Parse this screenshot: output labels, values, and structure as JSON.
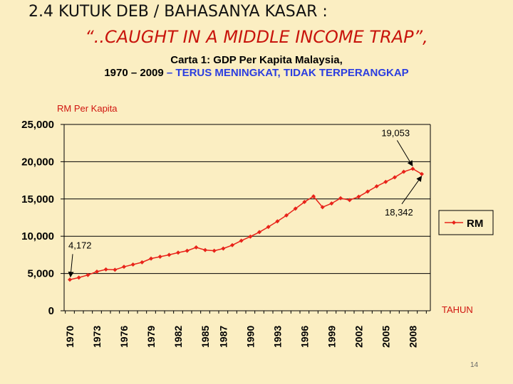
{
  "slide": {
    "title": "2.4   KUTUK DEB / BAHASANYA KASAR :",
    "subtitle": "“..CAUGHT IN A MIDDLE INCOME TRAP”,",
    "chart_title_line1": "Carta 1: GDP Per Kapita Malaysia,",
    "chart_title_line2_a": "1970 – 2009",
    "chart_title_line2_b": " – TERUS MENINGKAT, TIDAK TERPERANGKAP",
    "page_number": "14"
  },
  "colors": {
    "background": "#fbeec2",
    "series": "#e8231a",
    "subtitle": "#c8140c",
    "highlight_blue": "#2b3de0"
  },
  "chart_data": {
    "type": "line",
    "ylabel": "RM Per Kapita",
    "xlabel": "TAHUN",
    "ylim": [
      0,
      25000
    ],
    "yticks": [
      0,
      5000,
      10000,
      15000,
      20000,
      25000
    ],
    "ytick_labels": [
      "0",
      "5,000",
      "10,000",
      "15,000",
      "20,000",
      "25,000"
    ],
    "xticks": [
      "1970",
      "1973",
      "1976",
      "1979",
      "1982",
      "1985",
      "1987",
      "1990",
      "1993",
      "1996",
      "1999",
      "2002",
      "2005",
      "2008"
    ],
    "grid": "horizontal",
    "legend_position": "right",
    "series": [
      {
        "name": "RM",
        "x": [
          1970,
          1971,
          1972,
          1973,
          1974,
          1975,
          1976,
          1977,
          1978,
          1979,
          1980,
          1981,
          1982,
          1983,
          1984,
          1985,
          1986,
          1987,
          1988,
          1989,
          1990,
          1991,
          1992,
          1993,
          1994,
          1995,
          1996,
          1997,
          1998,
          1999,
          2000,
          2001,
          2002,
          2003,
          2004,
          2005,
          2006,
          2007,
          2008,
          2009
        ],
        "values": [
          4172,
          4450,
          4800,
          5250,
          5550,
          5500,
          5900,
          6200,
          6500,
          7000,
          7250,
          7500,
          7800,
          8050,
          8500,
          8150,
          8050,
          8350,
          8800,
          9400,
          9950,
          10550,
          11250,
          12000,
          12800,
          13700,
          14600,
          15350,
          13900,
          14400,
          15100,
          14850,
          15300,
          16000,
          16700,
          17300,
          17900,
          18650,
          19053,
          18342
        ]
      }
    ],
    "annotations": [
      {
        "label": "4,172",
        "x": 1970,
        "y": 4172
      },
      {
        "label": "19,053",
        "x": 2008,
        "y": 19053
      },
      {
        "label": "18,342",
        "x": 2009,
        "y": 18342
      }
    ]
  }
}
